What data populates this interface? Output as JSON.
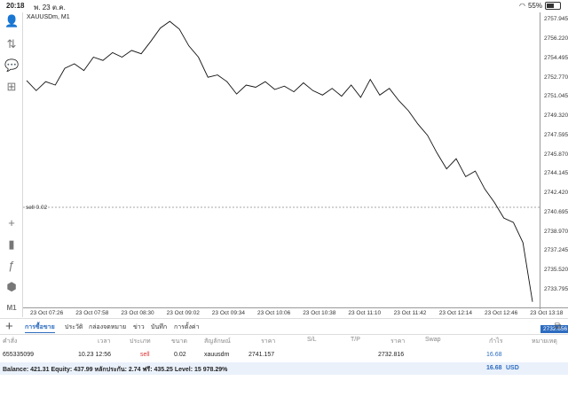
{
  "status": {
    "time": "20:18",
    "date": "พ. 23 ต.ค.",
    "battery": "55%"
  },
  "chart": {
    "symbol_label": "XAUUSDm, M1",
    "sell_line_label": "sell 0.02",
    "current_price": "2732.656",
    "price_ticks": [
      "2757.945",
      "2756.220",
      "2754.495",
      "2752.770",
      "2751.045",
      "2749.320",
      "2747.595",
      "2745.870",
      "2744.145",
      "2742.420",
      "2740.695",
      "2738.970",
      "2737.245",
      "2735.520",
      "2733.795"
    ],
    "time_ticks": [
      "23 Oct 07:26",
      "23 Oct 07:58",
      "23 Oct 08:30",
      "23 Oct 09:02",
      "23 Oct 09:34",
      "23 Oct 10:06",
      "23 Oct 10:38",
      "23 Oct 11:10",
      "23 Oct 11:42",
      "23 Oct 12:14",
      "23 Oct 12:46",
      "23 Oct 13:18"
    ],
    "series": [
      2752.5,
      2751.6,
      2752.4,
      2752.1,
      2753.6,
      2754.0,
      2753.4,
      2754.6,
      2754.3,
      2755.0,
      2754.6,
      2755.2,
      2754.9,
      2756.0,
      2757.2,
      2757.8,
      2757.1,
      2755.6,
      2754.6,
      2752.8,
      2753.0,
      2752.4,
      2751.3,
      2752.1,
      2751.9,
      2752.4,
      2751.7,
      2752.0,
      2751.5,
      2752.3,
      2751.6,
      2751.2,
      2751.8,
      2751.1,
      2752.1,
      2751.0,
      2752.6,
      2751.2,
      2751.8,
      2750.7,
      2749.8,
      2748.6,
      2747.6,
      2746.0,
      2744.6,
      2745.5,
      2743.9,
      2744.4,
      2742.8,
      2741.6,
      2740.2,
      2739.8,
      2738.0,
      2732.7
    ]
  },
  "tabs": [
    {
      "label": "การซื้อขาย",
      "active": true
    },
    {
      "label": "ประวัติ",
      "active": false
    },
    {
      "label": "กล่องจดหมาย",
      "active": false
    },
    {
      "label": "ข่าว",
      "active": false
    },
    {
      "label": "บันทึก",
      "active": false
    },
    {
      "label": "การตั้งค่า",
      "active": false
    }
  ],
  "table": {
    "headers": [
      "คำสั่ง",
      "เวลา",
      "ประเภท",
      "ขนาด",
      "สัญลักษณ์",
      "ราคา",
      "S/L",
      "T/P",
      "ราคา",
      "Swap",
      "กำไร",
      "หมายเหตุ"
    ],
    "row": {
      "order": "655335099",
      "time": "10.23 12:56",
      "type": "sell",
      "size": "0.02",
      "symbol": "xauusdm",
      "open_price": "2741.157",
      "sl": "",
      "tp": "",
      "price": "2732.816",
      "swap": "",
      "profit": "16.68",
      "note": ""
    }
  },
  "balance": {
    "text": "Balance: 421.31 Equity: 437.99 หลักประกัน: 2.74 ฟรี: 435.25 Level: 15 978.29%",
    "profit": "16.68",
    "currency": "USD"
  },
  "colors": {
    "accent": "#2d6cc0",
    "sell": "#dd3333",
    "line": "#111111"
  }
}
